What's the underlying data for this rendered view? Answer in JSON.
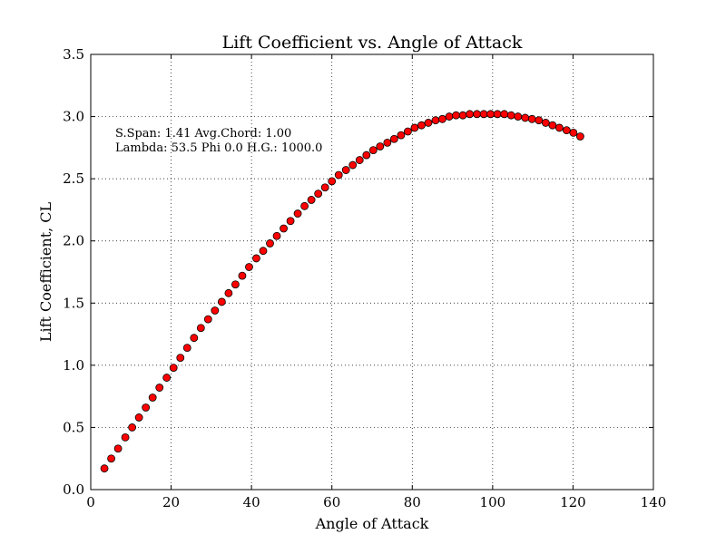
{
  "chart_data": {
    "type": "scatter",
    "title": "Lift Coefficient vs. Angle of Attack",
    "xlabel": "Angle of Attack",
    "ylabel": "Lift Coefficient, CL",
    "xlim": [
      0,
      140
    ],
    "ylim": [
      0,
      3.5
    ],
    "xticks": [
      0,
      20,
      40,
      60,
      80,
      100,
      120,
      140
    ],
    "yticks": [
      0.0,
      0.5,
      1.0,
      1.5,
      2.0,
      2.5,
      3.0,
      3.5
    ],
    "xtick_labels": [
      "0",
      "20",
      "40",
      "60",
      "80",
      "100",
      "120",
      "140"
    ],
    "ytick_labels": [
      "0.0",
      "0.5",
      "1.0",
      "1.5",
      "2.0",
      "2.5",
      "3.0",
      "3.5"
    ],
    "grid": true,
    "marker_color": "#ff0000",
    "marker_edge": "#000000",
    "annotations": [
      "S.Span: 1.41 Avg.Chord: 1.00",
      "Lambda: 53.5 Phi  0.0 H.G.: 1000.0"
    ],
    "x": [
      3.4,
      5.1,
      6.8,
      8.6,
      10.3,
      12.0,
      13.7,
      15.4,
      17.1,
      18.9,
      20.6,
      22.3,
      24.0,
      25.7,
      27.4,
      29.2,
      30.9,
      32.6,
      34.3,
      36.0,
      37.7,
      39.4,
      41.2,
      42.9,
      44.6,
      46.3,
      48.0,
      49.7,
      51.5,
      53.2,
      54.9,
      56.6,
      58.3,
      60.0,
      61.7,
      63.5,
      65.2,
      66.9,
      68.6,
      70.3,
      72.0,
      73.8,
      75.5,
      77.2,
      78.9,
      80.6,
      82.3,
      84.0,
      85.8,
      87.5,
      89.2,
      90.9,
      92.6,
      94.3,
      96.1,
      97.8,
      99.5,
      101.2,
      102.9,
      104.6,
      106.3,
      108.1,
      109.8,
      111.5,
      113.2,
      114.9,
      116.6,
      118.4,
      120.1,
      121.8
    ],
    "y": [
      0.17,
      0.25,
      0.33,
      0.42,
      0.5,
      0.58,
      0.66,
      0.74,
      0.82,
      0.9,
      0.98,
      1.06,
      1.14,
      1.22,
      1.3,
      1.37,
      1.44,
      1.51,
      1.58,
      1.65,
      1.72,
      1.79,
      1.86,
      1.92,
      1.98,
      2.04,
      2.1,
      2.16,
      2.22,
      2.28,
      2.33,
      2.38,
      2.43,
      2.48,
      2.53,
      2.57,
      2.61,
      2.65,
      2.69,
      2.73,
      2.76,
      2.79,
      2.82,
      2.85,
      2.88,
      2.91,
      2.93,
      2.95,
      2.97,
      2.98,
      3.0,
      3.01,
      3.01,
      3.02,
      3.02,
      3.02,
      3.02,
      3.02,
      3.02,
      3.01,
      3.0,
      2.99,
      2.98,
      2.97,
      2.95,
      2.93,
      2.91,
      2.89,
      2.87,
      2.84
    ]
  }
}
